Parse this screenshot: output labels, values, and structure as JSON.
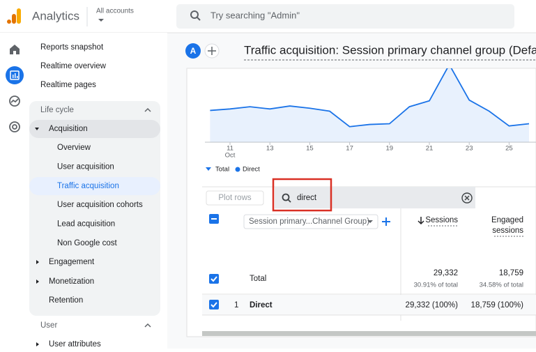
{
  "header": {
    "app_name": "Analytics",
    "account_label": "All accounts",
    "search_placeholder": "Try searching \"Admin\""
  },
  "nav": {
    "top_items": [
      "Reports snapshot",
      "Realtime overview",
      "Realtime pages"
    ],
    "section": "Life cycle",
    "group": "Acquisition",
    "sub_items": [
      "Overview",
      "User acquisition",
      "Traffic acquisition",
      "User acquisition cohorts",
      "Lead acquisition",
      "Non Google cost"
    ],
    "selected": "Traffic acquisition",
    "more_items": [
      "Engagement",
      "Monetization",
      "Retention"
    ],
    "section2": "User",
    "section2_items": [
      "User attributes"
    ]
  },
  "page": {
    "avatar": "A",
    "title": "Traffic acquisition: Session primary channel group (Defau"
  },
  "chart_data": {
    "type": "line",
    "x": [
      10,
      11,
      12,
      13,
      14,
      15,
      16,
      17,
      18,
      19,
      20,
      21,
      22,
      23,
      24,
      25,
      26
    ],
    "xlim": [
      9.75,
      26.6
    ],
    "ylim": [
      0,
      100
    ],
    "xticks": [
      11,
      13,
      15,
      17,
      19,
      21,
      23,
      25
    ],
    "x_annotation": "Oct",
    "series": [
      {
        "name": "Total",
        "color": "#1a73e8",
        "values": [
          43,
          45,
          48,
          45,
          49,
          46,
          42,
          21,
          24,
          25,
          48,
          56,
          105,
          57,
          42,
          22,
          25
        ]
      }
    ],
    "legend": [
      "Total",
      "Direct"
    ]
  },
  "table": {
    "plot_rows": "Plot rows",
    "search_value": "direct",
    "dimension": "Session primary...Channel Group)",
    "columns": [
      "Sessions",
      [
        "Engaged",
        "sessions"
      ]
    ],
    "total": {
      "label": "Total",
      "sessions": "29,332",
      "sessions_pct": "30.91% of total",
      "engaged": "18,759",
      "engaged_pct": "34.58% of total"
    },
    "rows": [
      [
        "1",
        "Direct",
        "29,332 (100%)",
        "18,759 (100%)"
      ]
    ]
  }
}
